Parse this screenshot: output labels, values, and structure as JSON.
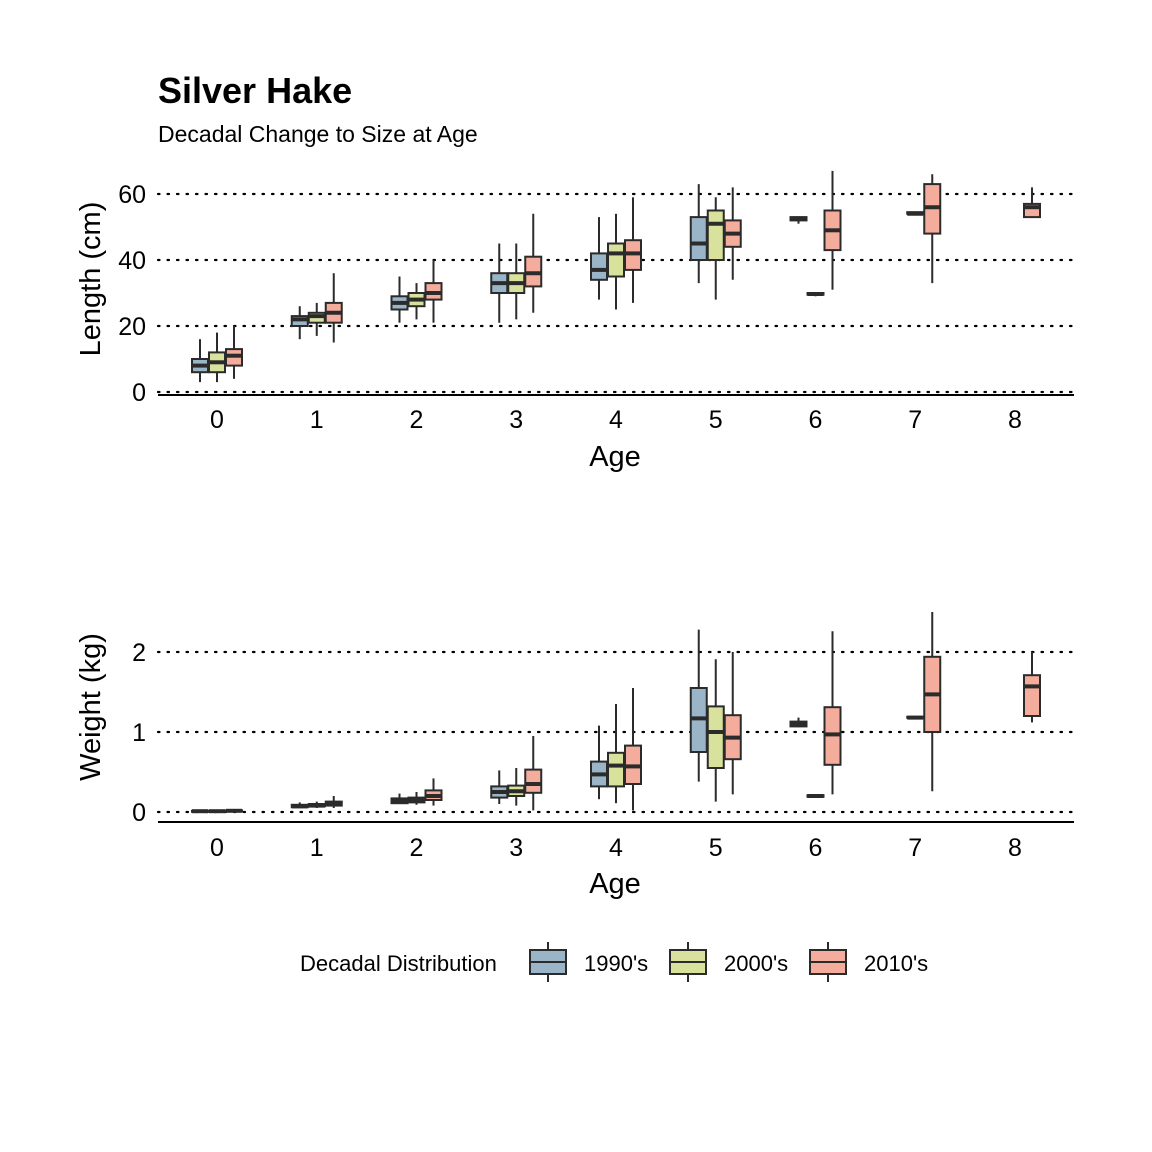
{
  "title": "Silver Hake",
  "subtitle": "Decadal Change to Size at Age",
  "legend": {
    "title": "Decadal Distribution",
    "items": [
      {
        "label": "1990's",
        "color": "#9BB5C8"
      },
      {
        "label": "2000's",
        "color": "#D8E29C"
      },
      {
        "label": "2010's",
        "color": "#F4AC9C"
      }
    ]
  },
  "chart_data": [
    {
      "type": "boxplot",
      "xlabel": "Age",
      "ylabel": "Length (cm)",
      "categories": [
        "0",
        "1",
        "2",
        "3",
        "4",
        "5",
        "6",
        "7",
        "8"
      ],
      "yticks": [
        0,
        20,
        40,
        60
      ],
      "ylim": [
        0,
        60
      ],
      "grid": "horizontal dotted",
      "series": [
        {
          "name": "1990's",
          "boxes": [
            {
              "x": "0",
              "min": 3,
              "q1": 6,
              "median": 8,
              "q3": 10,
              "max": 16
            },
            {
              "x": "1",
              "min": 16,
              "q1": 20,
              "median": 22,
              "q3": 23,
              "max": 26
            },
            {
              "x": "2",
              "min": 21,
              "q1": 25,
              "median": 27,
              "q3": 29,
              "max": 35
            },
            {
              "x": "3",
              "min": 21,
              "q1": 30,
              "median": 33,
              "q3": 36,
              "max": 45
            },
            {
              "x": "4",
              "min": 28,
              "q1": 34,
              "median": 37,
              "q3": 42,
              "max": 53
            },
            {
              "x": "5",
              "min": 33,
              "q1": 40,
              "median": 45,
              "q3": 53,
              "max": 63
            },
            {
              "x": "6",
              "min": 51,
              "q1": 52,
              "median": 52.5,
              "q3": 53,
              "max": 53
            }
          ]
        },
        {
          "name": "2000's",
          "boxes": [
            {
              "x": "0",
              "min": 3,
              "q1": 6,
              "median": 9,
              "q3": 12,
              "max": 18
            },
            {
              "x": "1",
              "min": 17,
              "q1": 21,
              "median": 23,
              "q3": 24,
              "max": 27
            },
            {
              "x": "2",
              "min": 22,
              "q1": 26,
              "median": 28,
              "q3": 30,
              "max": 33
            },
            {
              "x": "3",
              "min": 22,
              "q1": 30,
              "median": 33,
              "q3": 36,
              "max": 45
            },
            {
              "x": "4",
              "min": 25,
              "q1": 35,
              "median": 42,
              "q3": 45,
              "max": 54
            },
            {
              "x": "5",
              "min": 28,
              "q1": 40,
              "median": 51,
              "q3": 55,
              "max": 59
            },
            {
              "x": "6",
              "min": 29,
              "q1": 29.5,
              "median": 29.7,
              "q3": 30,
              "max": 30
            },
            {
              "x": "7",
              "min": 54,
              "q1": 54,
              "median": 54,
              "q3": 54.5,
              "max": 54.5
            }
          ]
        },
        {
          "name": "2010's",
          "boxes": [
            {
              "x": "0",
              "min": 4,
              "q1": 8,
              "median": 11,
              "q3": 13,
              "max": 20
            },
            {
              "x": "1",
              "min": 15,
              "q1": 21,
              "median": 24,
              "q3": 27,
              "max": 36
            },
            {
              "x": "2",
              "min": 21,
              "q1": 28,
              "median": 30,
              "q3": 33,
              "max": 40
            },
            {
              "x": "3",
              "min": 24,
              "q1": 32,
              "median": 36,
              "q3": 41,
              "max": 54
            },
            {
              "x": "4",
              "min": 27,
              "q1": 37,
              "median": 42,
              "q3": 46,
              "max": 59
            },
            {
              "x": "5",
              "min": 34,
              "q1": 44,
              "median": 48,
              "q3": 52,
              "max": 62
            },
            {
              "x": "6",
              "min": 31,
              "q1": 43,
              "median": 49,
              "q3": 55,
              "max": 67
            },
            {
              "x": "7",
              "min": 33,
              "q1": 48,
              "median": 56,
              "q3": 63,
              "max": 66
            },
            {
              "x": "8",
              "min": 53,
              "q1": 53,
              "median": 56,
              "q3": 57,
              "max": 62
            }
          ]
        }
      ]
    },
    {
      "type": "boxplot",
      "xlabel": "Age",
      "ylabel": "Weight (kg)",
      "categories": [
        "0",
        "1",
        "2",
        "3",
        "4",
        "5",
        "6",
        "7",
        "8"
      ],
      "yticks": [
        0,
        1,
        2
      ],
      "ylim": [
        0,
        2.5
      ],
      "grid": "horizontal dotted",
      "series": [
        {
          "name": "1990's",
          "boxes": [
            {
              "x": "0",
              "min": 0,
              "q1": 0.005,
              "median": 0.01,
              "q3": 0.015,
              "max": 0.02
            },
            {
              "x": "1",
              "min": 0.05,
              "q1": 0.06,
              "median": 0.07,
              "q3": 0.09,
              "max": 0.12
            },
            {
              "x": "2",
              "min": 0.1,
              "q1": 0.11,
              "median": 0.14,
              "q3": 0.17,
              "max": 0.23
            },
            {
              "x": "3",
              "min": 0.1,
              "q1": 0.18,
              "median": 0.25,
              "q3": 0.32,
              "max": 0.52
            },
            {
              "x": "4",
              "min": 0.16,
              "q1": 0.32,
              "median": 0.47,
              "q3": 0.63,
              "max": 1.08
            },
            {
              "x": "5",
              "min": 0.38,
              "q1": 0.75,
              "median": 1.17,
              "q3": 1.55,
              "max": 2.28
            },
            {
              "x": "6",
              "min": 1.06,
              "q1": 1.07,
              "median": 1.1,
              "q3": 1.13,
              "max": 1.18
            }
          ]
        },
        {
          "name": "2000's",
          "boxes": [
            {
              "x": "0",
              "min": 0,
              "q1": 0.005,
              "median": 0.01,
              "q3": 0.015,
              "max": 0.02
            },
            {
              "x": "1",
              "min": 0.05,
              "q1": 0.07,
              "median": 0.08,
              "q3": 0.1,
              "max": 0.13
            },
            {
              "x": "2",
              "min": 0.09,
              "q1": 0.12,
              "median": 0.15,
              "q3": 0.18,
              "max": 0.25
            },
            {
              "x": "3",
              "min": 0.08,
              "q1": 0.2,
              "median": 0.26,
              "q3": 0.33,
              "max": 0.55
            },
            {
              "x": "4",
              "min": 0.11,
              "q1": 0.32,
              "median": 0.58,
              "q3": 0.74,
              "max": 1.35
            },
            {
              "x": "5",
              "min": 0.13,
              "q1": 0.55,
              "median": 1.0,
              "q3": 1.32,
              "max": 1.91
            },
            {
              "x": "6",
              "min": 0.19,
              "q1": 0.19,
              "median": 0.2,
              "q3": 0.21,
              "max": 0.21
            },
            {
              "x": "7",
              "min": 1.18,
              "q1": 1.18,
              "median": 1.18,
              "q3": 1.19,
              "max": 1.19
            }
          ]
        },
        {
          "name": "2010's",
          "boxes": [
            {
              "x": "0",
              "min": 0,
              "q1": 0.01,
              "median": 0.015,
              "q3": 0.02,
              "max": 0.03
            },
            {
              "x": "1",
              "min": 0.05,
              "q1": 0.08,
              "median": 0.1,
              "q3": 0.13,
              "max": 0.2
            },
            {
              "x": "2",
              "min": 0.08,
              "q1": 0.15,
              "median": 0.2,
              "q3": 0.27,
              "max": 0.42
            },
            {
              "x": "3",
              "min": 0.02,
              "q1": 0.24,
              "median": 0.35,
              "q3": 0.53,
              "max": 0.95
            },
            {
              "x": "4",
              "min": 0.02,
              "q1": 0.35,
              "median": 0.57,
              "q3": 0.83,
              "max": 1.55
            },
            {
              "x": "5",
              "min": 0.22,
              "q1": 0.66,
              "median": 0.93,
              "q3": 1.21,
              "max": 2.0
            },
            {
              "x": "6",
              "min": 0.22,
              "q1": 0.59,
              "median": 0.97,
              "q3": 1.31,
              "max": 2.26
            },
            {
              "x": "7",
              "min": 0.26,
              "q1": 1.0,
              "median": 1.47,
              "q3": 1.94,
              "max": 2.5
            },
            {
              "x": "8",
              "min": 1.12,
              "q1": 1.2,
              "median": 1.57,
              "q3": 1.71,
              "max": 2.0
            }
          ]
        }
      ]
    }
  ]
}
